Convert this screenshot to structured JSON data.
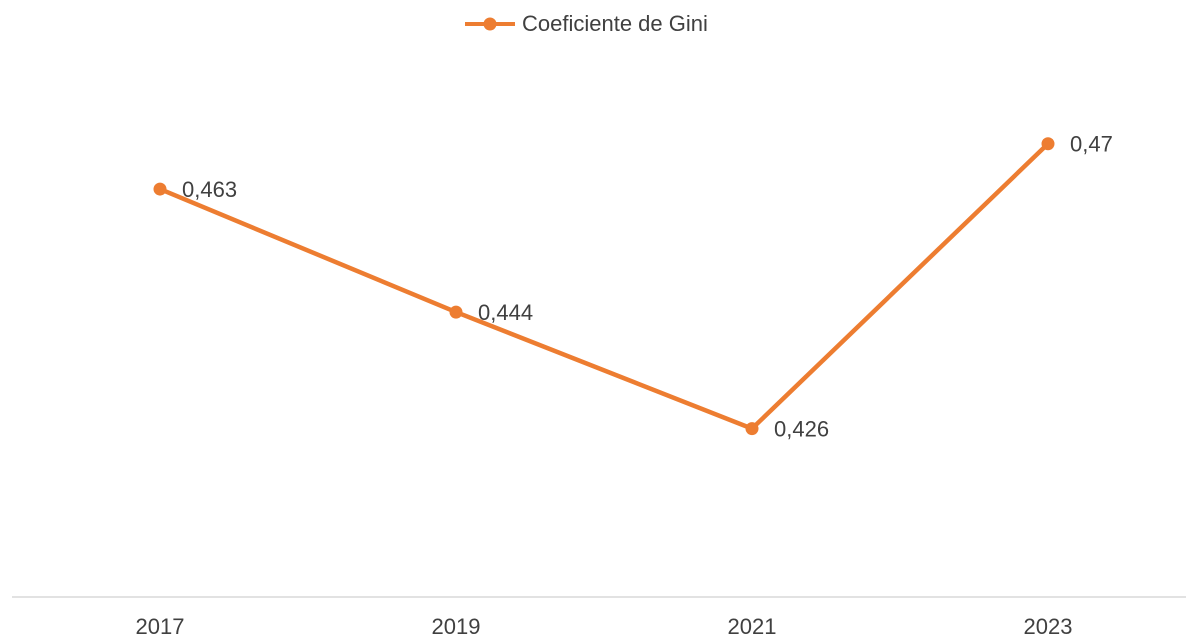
{
  "chart_data": {
    "type": "line",
    "categories": [
      "2017",
      "2019",
      "2021",
      "2023"
    ],
    "series": [
      {
        "name": "Coeficiente de Gini",
        "color": "#ED7D31",
        "values": [
          0.463,
          0.444,
          0.426,
          0.47
        ],
        "value_labels": [
          "0,463",
          "0,444",
          "0,426",
          "0,47"
        ]
      }
    ],
    "ylim": [
      0.4,
      0.48
    ],
    "legend": "top"
  }
}
